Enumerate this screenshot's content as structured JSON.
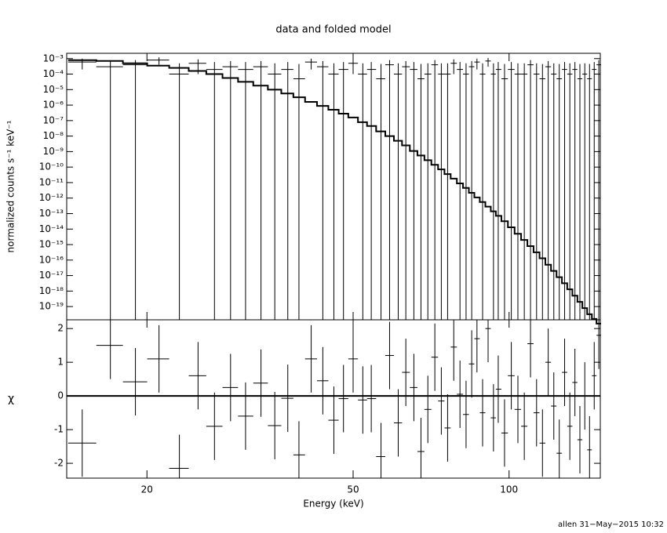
{
  "chart_data": [
    {
      "type": "spectrum",
      "title": "data and folded model",
      "ylabel": "normalized counts s⁻¹ keV⁻¹",
      "log_y": true,
      "ylim": [
        0.0022,
        1.4e-20
      ],
      "yticks": [
        {
          "value": 0.001,
          "label": "10⁻³"
        },
        {
          "value": 0.0001,
          "label": "10⁻⁴"
        },
        {
          "value": 1e-05,
          "label": "10⁻⁵"
        },
        {
          "value": 1e-06,
          "label": "10⁻⁶"
        },
        {
          "value": 1e-07,
          "label": "10⁻⁷"
        },
        {
          "value": 1e-08,
          "label": "10⁻⁸"
        },
        {
          "value": 1e-09,
          "label": "10⁻⁹"
        },
        {
          "value": 1e-10,
          "label": "10⁻¹⁰"
        },
        {
          "value": 1e-11,
          "label": "10⁻¹¹"
        },
        {
          "value": 1e-12,
          "label": "10⁻¹²"
        },
        {
          "value": 1e-13,
          "label": "10⁻¹³"
        },
        {
          "value": 1e-14,
          "label": "10⁻¹⁴"
        },
        {
          "value": 1e-15,
          "label": "10⁻¹⁵"
        },
        {
          "value": 1e-16,
          "label": "10⁻¹⁶"
        },
        {
          "value": 1e-17,
          "label": "10⁻¹⁷"
        },
        {
          "value": 1e-18,
          "label": "10⁻¹⁸"
        },
        {
          "value": 1e-19,
          "label": "10⁻¹⁹"
        }
      ],
      "x": [
        15,
        17,
        19,
        21.1,
        23.1,
        25.1,
        27,
        29,
        31,
        33.2,
        35.3,
        37.4,
        39.3,
        41.5,
        43.7,
        45.9,
        47.9,
        50,
        52.2,
        54.2,
        56.6,
        58.8,
        61.1,
        63.2,
        65.5,
        67.6,
        69.7,
        71.9,
        74,
        76.1,
        78.2,
        80.4,
        82.6,
        84.7,
        86.7,
        88.9,
        91.1,
        93.3,
        95.3,
        98,
        101,
        104,
        107,
        110,
        113,
        116,
        119,
        122,
        125,
        128,
        131,
        134,
        137,
        140,
        143,
        146,
        149
      ],
      "series": [
        {
          "name": "data",
          "color": "#000000",
          "yerr": 0.0004,
          "values": [
            0.0006,
            0.0003,
            0.0004,
            0.0008,
            0.0001,
            0.0005,
            0.0002,
            0.0003,
            0.0002,
            0.0003,
            0.0001,
            0.0002,
            5e-05,
            0.0006,
            0.0003,
            0.0001,
            0.0002,
            0.0005,
            0.0001,
            0.0002,
            5e-05,
            0.0004,
            0.0001,
            0.0003,
            0.0002,
            5e-05,
            0.0001,
            0.0004,
            0.0001,
            0.0001,
            0.0005,
            0.0002,
            0.0001,
            0.0003,
            0.0006,
            0.0001,
            0.0007,
            0.0001,
            0.0002,
            5e-05,
            0.0002,
            0.0001,
            0.0001,
            0.0004,
            0.0001,
            5e-05,
            0.0003,
            0.0001,
            5e-05,
            0.0002,
            0.0001,
            0.0002,
            5e-05,
            0.0001,
            5e-05,
            0.0002,
            0.0004
          ]
        },
        {
          "name": "model",
          "color": "#000000",
          "values": [
            0.00079,
            0.00071,
            0.0005,
            0.00035,
            0.00025,
            0.00016,
            0.0001,
            5.6e-05,
            3.2e-05,
            1.8e-05,
            1e-05,
            5.6e-06,
            3.2e-06,
            1.6e-06,
            8.9e-07,
            5e-07,
            2.8e-07,
            1.6e-07,
            7.9e-08,
            4.5e-08,
            2e-08,
            1e-08,
            5e-09,
            2.5e-09,
            1.1e-09,
            5.6e-10,
            2.8e-10,
            1.4e-10,
            7.1e-11,
            3.5e-11,
            1.8e-11,
            8.9e-12,
            4.5e-12,
            2.2e-12,
            1.1e-12,
            5.6e-13,
            2.8e-13,
            1.4e-13,
            7.1e-14,
            3.2e-14,
            1.3e-14,
            5e-15,
            2e-15,
            7.9e-16,
            3.2e-16,
            1.3e-16,
            5e-17,
            2e-17,
            7.9e-18,
            3.2e-18,
            1.3e-18,
            5e-19,
            2e-19,
            7.9e-20,
            3.2e-20,
            1.6e-20,
            7.9e-21
          ]
        }
      ]
    },
    {
      "type": "residual",
      "ylabel": "χ",
      "xlabel": "Energy (keV)",
      "log_x": true,
      "xlim": [
        14,
        150
      ],
      "xticks": [
        20,
        50,
        100
      ],
      "ylim": [
        -2.44,
        2.26
      ],
      "yticks": [
        -2,
        -1,
        0,
        1,
        2
      ],
      "hline": 0,
      "hline_color": "#00ee00",
      "yerr": 1,
      "color": "#000000",
      "values": [
        -1.4,
        1.5,
        0.42,
        1.1,
        -2.15,
        0.6,
        -0.9,
        0.25,
        -0.6,
        0.38,
        -0.88,
        -0.07,
        -1.75,
        1.1,
        0.45,
        -0.72,
        -0.08,
        1.1,
        -0.12,
        -0.08,
        -1.8,
        1.2,
        -0.8,
        0.7,
        0.25,
        -1.65,
        -0.4,
        1.15,
        -0.15,
        -0.95,
        1.45,
        0.05,
        -0.55,
        0.95,
        1.7,
        -0.5,
        2.0,
        -0.65,
        0.2,
        -1.1,
        0.6,
        -0.4,
        -0.9,
        1.55,
        -0.5,
        -1.4,
        1.0,
        -0.3,
        -1.7,
        0.7,
        -0.9,
        0.4,
        -1.3,
        0.0,
        -1.6,
        0.6,
        1.8
      ]
    },
    {
      "type": "footer",
      "text": "allen 31−May−2015 10:32"
    }
  ]
}
